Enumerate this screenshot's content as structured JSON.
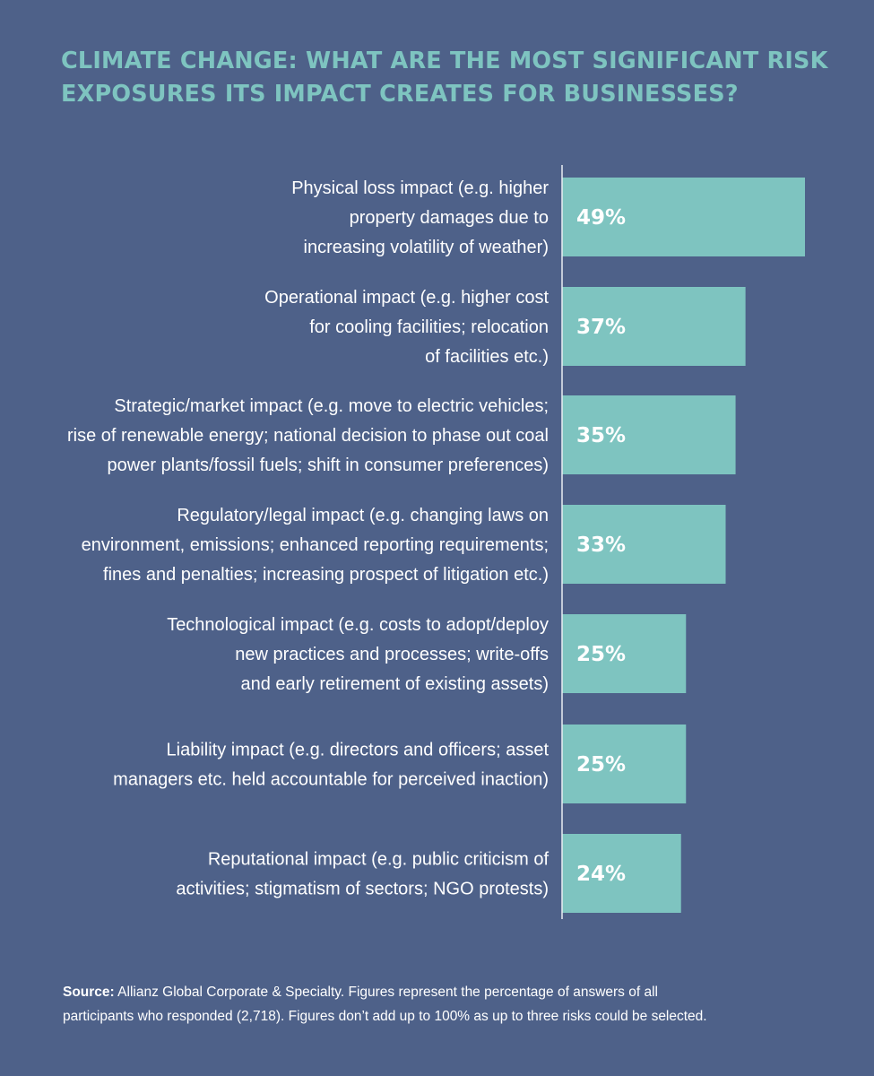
{
  "title_lines": [
    "CLIMATE CHANGE: WHAT ARE THE MOST SIGNIFICANT RISK",
    "EXPOSURES ITS IMPACT CREATES FOR BUSINESSES?"
  ],
  "chart_data": {
    "type": "bar",
    "orientation": "horizontal",
    "title": "CLIMATE CHANGE: WHAT ARE THE MOST SIGNIFICANT RISK EXPOSURES ITS IMPACT CREATES FOR BUSINESSES?",
    "categories": [
      [
        "Physical loss impact (e.g. higher",
        "property damages due to",
        "increasing volatility of weather)"
      ],
      [
        "Operational impact (e.g. higher cost",
        "for cooling facilities; relocation",
        "of facilities etc.)"
      ],
      [
        "Strategic/market impact (e.g. move to electric vehicles;",
        "rise of renewable energy; national decision to phase out coal",
        "power plants/fossil fuels; shift in consumer preferences)"
      ],
      [
        "Regulatory/legal impact (e.g. changing laws on",
        "environment, emissions; enhanced reporting requirements;",
        "fines and penalties; increasing prospect of litigation etc.)"
      ],
      [
        "Technological impact (e.g. costs to adopt/deploy",
        "new practices and processes; write-offs",
        "and early retirement of existing assets)"
      ],
      [
        "Liability impact (e.g. directors and officers; asset",
        "managers etc. held accountable for perceived inaction)"
      ],
      [
        "Reputational impact (e.g. public criticism of",
        "activities; stigmatism of sectors; NGO protests)"
      ]
    ],
    "values": [
      49,
      37,
      35,
      33,
      25,
      25,
      24
    ],
    "value_labels": [
      "49%",
      "37%",
      "35%",
      "33%",
      "25%",
      "25%",
      "24%"
    ],
    "unit": "%",
    "xlim": [
      0,
      49
    ],
    "grid": false,
    "legend": "none",
    "bar_color": "#7ec4c0"
  },
  "source": {
    "label": "Source:",
    "line1": " Allianz Global Corporate & Specialty. Figures represent the percentage of answers of all",
    "line2": "participants who responded (2,718). Figures don’t add up to 100% as up to three risks could be selected."
  },
  "colors": {
    "background": "#4e6189",
    "accent": "#7ec4c0",
    "text": "#ffffff",
    "axis": "#e9edf3"
  }
}
